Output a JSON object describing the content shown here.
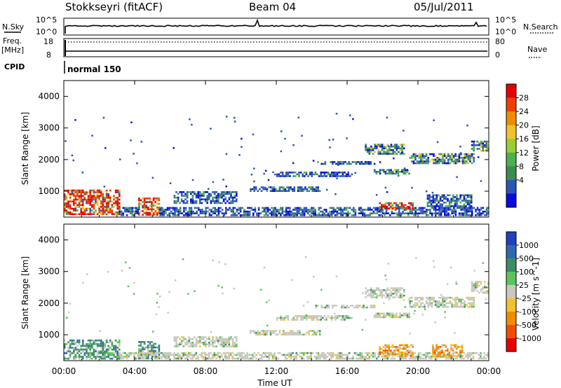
{
  "header": {
    "station": "Stokkseyri (fitACF)",
    "beam": "Beam 04",
    "date": "05/Jul/2011"
  },
  "noise_panel": {
    "left_label": "N.Sky",
    "right_label": "N.Search",
    "left_ticks": [
      "10^5",
      "10^0"
    ],
    "right_ticks": [
      "10^5",
      "10^0"
    ]
  },
  "freq_panel": {
    "left_label_line1": "Freq.",
    "left_label_line2": "[MHz]",
    "right_label": "Nave",
    "left_ticks": [
      "18",
      "8"
    ],
    "right_ticks": [
      "80",
      "0"
    ]
  },
  "cpid_panel": {
    "label": "CPID",
    "value": "normal 150"
  },
  "colors": {
    "power": [
      "#0a0ae0",
      "#2a55b4",
      "#3c8c50",
      "#4caf50",
      "#9acd32",
      "#f2c12e",
      "#f08c00",
      "#ef3e00",
      "#e60000"
    ],
    "velocity": [
      "#2040c0",
      "#3366b0",
      "#3c8c64",
      "#5cc45c",
      "#c8c8c0",
      "#f2c12e",
      "#f08c00",
      "#ef4e00",
      "#e60000"
    ]
  },
  "chart_data": [
    {
      "type": "heatmap",
      "name": "power-panel",
      "ylabel": "Slant Range [km]",
      "x_ticks": [
        "00:00",
        "04:00",
        "08:00",
        "12:00",
        "16:00",
        "20:00",
        "00:00"
      ],
      "y_ticks": [
        1000,
        2000,
        3000,
        4000
      ],
      "xlim": [
        0,
        24
      ],
      "ylim": [
        180,
        4500
      ],
      "colorbar_label": "Power [dB]",
      "colorbar_ticks": [
        "28",
        "24",
        "20",
        "16",
        "12",
        "8",
        "4"
      ],
      "scale": "power",
      "regions": [
        {
          "t": [
            0,
            3.1
          ],
          "r": [
            250,
            1050
          ],
          "level": "strong"
        },
        {
          "t": [
            4.2,
            5.4
          ],
          "r": [
            250,
            800
          ],
          "level": "strong"
        },
        {
          "t": [
            3.1,
            4.2
          ],
          "r": [
            250,
            500
          ],
          "level": "weak"
        },
        {
          "t": [
            5.4,
            24
          ],
          "r": [
            250,
            500
          ],
          "level": "weak"
        },
        {
          "t": [
            6.2,
            9.8
          ],
          "r": [
            650,
            1000
          ],
          "level": "weak"
        },
        {
          "t": [
            10.5,
            14.5
          ],
          "r": [
            1000,
            1150
          ],
          "level": "weak"
        },
        {
          "t": [
            12,
            16.3
          ],
          "r": [
            1500,
            1620
          ],
          "level": "weak"
        },
        {
          "t": [
            14.2,
            17.5
          ],
          "r": [
            1850,
            1950
          ],
          "level": "weak"
        },
        {
          "t": [
            17.5,
            19.5
          ],
          "r": [
            1550,
            1700
          ],
          "level": "mid"
        },
        {
          "t": [
            17.0,
            19.2
          ],
          "r": [
            2200,
            2500
          ],
          "level": "mid"
        },
        {
          "t": [
            19.5,
            23.2
          ],
          "r": [
            1900,
            2200
          ],
          "level": "mid"
        },
        {
          "t": [
            23.0,
            24
          ],
          "r": [
            2300,
            2600
          ],
          "level": "mid"
        },
        {
          "t": [
            17.8,
            19.7
          ],
          "r": [
            450,
            650
          ],
          "level": "strong"
        },
        {
          "t": [
            20.5,
            23
          ],
          "r": [
            500,
            900
          ],
          "level": "weak"
        }
      ]
    },
    {
      "type": "heatmap",
      "name": "velocity-panel",
      "ylabel": "Slant Range [km]",
      "xlabel": "Time UT",
      "x_ticks": [
        "00:00",
        "04:00",
        "08:00",
        "12:00",
        "16:00",
        "20:00",
        "00:00"
      ],
      "y_ticks": [
        1000,
        2000,
        3000,
        4000
      ],
      "xlim": [
        0,
        24
      ],
      "ylim": [
        180,
        4500
      ],
      "colorbar_label": "Velocity [m s^-1]",
      "colorbar_ticks": [
        "1000",
        "500",
        "100",
        "25",
        "-25",
        "-100",
        "-500",
        "-1000"
      ],
      "scale": "velocity",
      "regions": [
        {
          "t": [
            0,
            3.1
          ],
          "r": [
            250,
            850
          ],
          "level": "green"
        },
        {
          "t": [
            4.2,
            5.4
          ],
          "r": [
            250,
            800
          ],
          "level": "green"
        },
        {
          "t": [
            3.1,
            24
          ],
          "r": [
            250,
            450
          ],
          "level": "grey"
        },
        {
          "t": [
            6.2,
            9.8
          ],
          "r": [
            650,
            950
          ],
          "level": "grey"
        },
        {
          "t": [
            10.5,
            14.5
          ],
          "r": [
            1000,
            1150
          ],
          "level": "grey"
        },
        {
          "t": [
            12,
            16.3
          ],
          "r": [
            1500,
            1620
          ],
          "level": "grey"
        },
        {
          "t": [
            14.2,
            17.5
          ],
          "r": [
            1850,
            1950
          ],
          "level": "grey"
        },
        {
          "t": [
            17.5,
            19.5
          ],
          "r": [
            1550,
            1700
          ],
          "level": "grey"
        },
        {
          "t": [
            17.0,
            19.2
          ],
          "r": [
            2200,
            2500
          ],
          "level": "grey"
        },
        {
          "t": [
            19.5,
            23.2
          ],
          "r": [
            1900,
            2200
          ],
          "level": "grey"
        },
        {
          "t": [
            23.0,
            24
          ],
          "r": [
            2300,
            2700
          ],
          "level": "grey"
        },
        {
          "t": [
            17.8,
            19.7
          ],
          "r": [
            350,
            700
          ],
          "level": "orange"
        },
        {
          "t": [
            20.8,
            22.5
          ],
          "r": [
            350,
            700
          ],
          "level": "orange"
        }
      ]
    }
  ]
}
